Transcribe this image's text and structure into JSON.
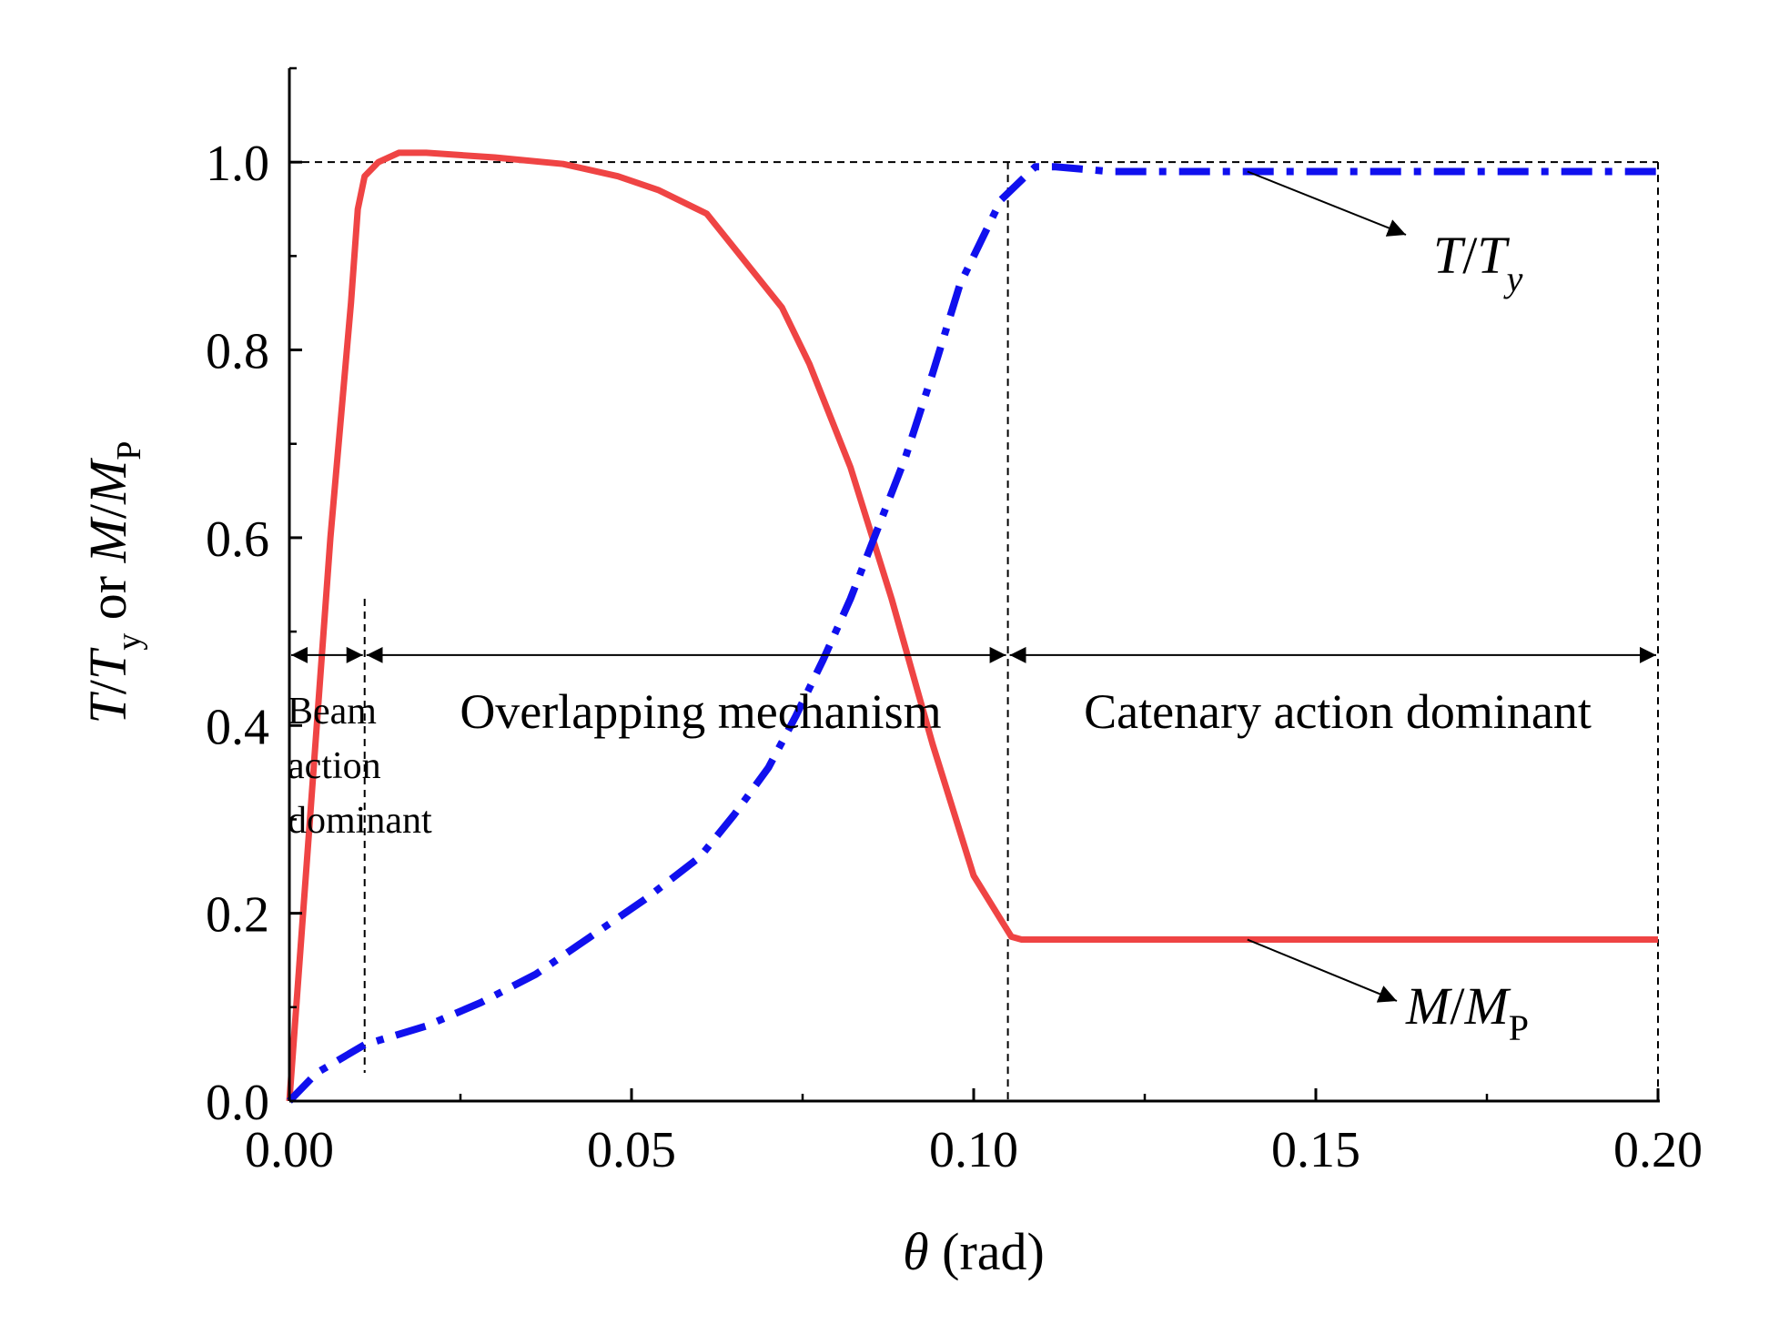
{
  "chart_data": {
    "type": "line",
    "xlabel": {
      "symbol": "θ",
      "unit": "(rad)"
    },
    "ylabel": {
      "t": "T",
      "slash": "/",
      "t2": "T",
      "sub_y": "y",
      "or": " or ",
      "m": "M",
      "slash2": "/",
      "m2": "M",
      "sub_p": "P"
    },
    "xlim": [
      0,
      0.2
    ],
    "ylim": [
      0,
      1.1
    ],
    "x_ticks": [
      "0.00",
      "0.05",
      "0.10",
      "0.15",
      "0.20"
    ],
    "x_tick_values": [
      0,
      0.05,
      0.1,
      0.15,
      0.2
    ],
    "x_minor_ticks": [
      0.025,
      0.075,
      0.125,
      0.175
    ],
    "y_ticks": [
      "0.0",
      "0.2",
      "0.4",
      "0.6",
      "0.8",
      "1.0"
    ],
    "y_tick_values": [
      0,
      0.2,
      0.4,
      0.6,
      0.8,
      1.0
    ],
    "y_minor_ticks": [
      0.1,
      0.3,
      0.5,
      0.7,
      0.9,
      1.1
    ],
    "reference_line_y": 1.0,
    "region_bounds_x": [
      0.011,
      0.105,
      0.2
    ],
    "region_arrow_y": 0.475,
    "regions": {
      "beam": [
        "Beam",
        "action",
        "dominant"
      ],
      "overlap": "Overlapping mechanism",
      "catenary": "Catenary action dominant"
    },
    "series": [
      {
        "name": "M/MP",
        "label_main": "M",
        "label_slash": "/",
        "label_main2": "M",
        "label_sub": "P",
        "color": "#ef4444",
        "style": "solid",
        "x": [
          0,
          0.003,
          0.006,
          0.009,
          0.01,
          0.011,
          0.013,
          0.016,
          0.02,
          0.03,
          0.04,
          0.048,
          0.054,
          0.061,
          0.072,
          0.076,
          0.082,
          0.088,
          0.094,
          0.1,
          0.1055,
          0.107,
          0.2
        ],
        "y": [
          0,
          0.3,
          0.6,
          0.85,
          0.95,
          0.985,
          1.0,
          1.01,
          1.01,
          1.005,
          0.998,
          0.985,
          0.97,
          0.945,
          0.845,
          0.785,
          0.675,
          0.535,
          0.38,
          0.24,
          0.175,
          0.172,
          0.172
        ]
      },
      {
        "name": "T/Ty",
        "label_main": "T",
        "label_slash": "/",
        "label_main2": "T",
        "label_sub": "y",
        "color": "#1010ee",
        "style": "dash-dot",
        "x": [
          0,
          0.004,
          0.011,
          0.02,
          0.028,
          0.036,
          0.044,
          0.052,
          0.06,
          0.065,
          0.07,
          0.074,
          0.078,
          0.082,
          0.086,
          0.09,
          0.094,
          0.098,
          0.104,
          0.109,
          0.112,
          0.12,
          0.2
        ],
        "y": [
          0,
          0.03,
          0.06,
          0.08,
          0.105,
          0.135,
          0.175,
          0.215,
          0.26,
          0.305,
          0.355,
          0.41,
          0.47,
          0.535,
          0.61,
          0.685,
          0.775,
          0.87,
          0.96,
          0.995,
          0.995,
          0.99,
          0.99
        ]
      }
    ]
  }
}
